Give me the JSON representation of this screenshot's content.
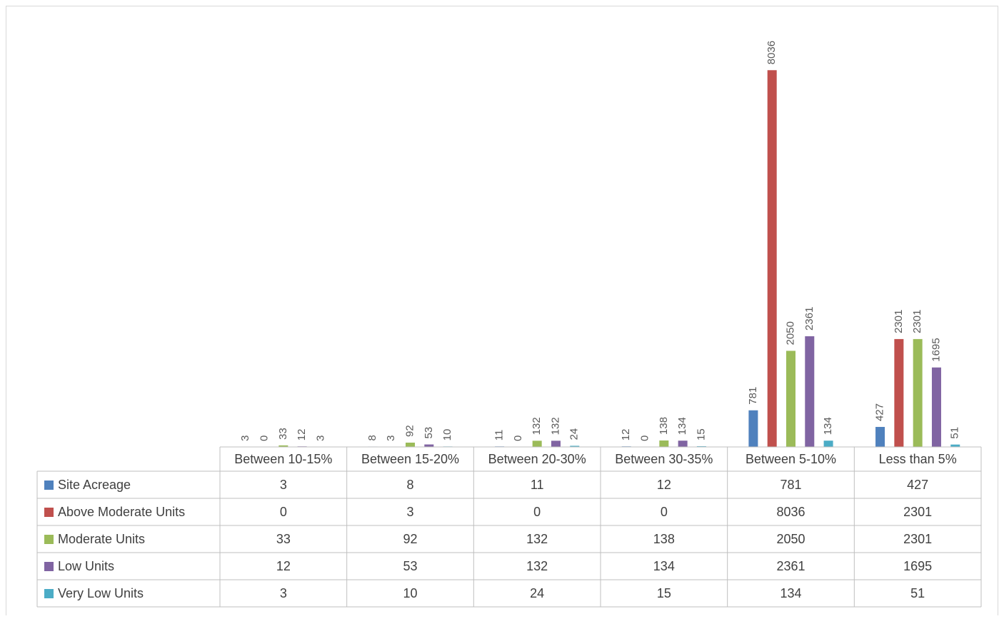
{
  "chart_data": {
    "type": "bar",
    "categories": [
      "Between 10-15%",
      "Between 15-20%",
      "Between 20-30%",
      "Between 30-35%",
      "Between 5-10%",
      "Less than 5%"
    ],
    "series": [
      {
        "name": "Site Acreage",
        "color": "#4f81bd",
        "values": [
          3,
          8,
          11,
          12,
          781,
          427
        ]
      },
      {
        "name": "Above Moderate Units",
        "color": "#c0504d",
        "values": [
          0,
          3,
          0,
          0,
          8036,
          2301
        ]
      },
      {
        "name": "Moderate Units",
        "color": "#9bbb59",
        "values": [
          33,
          92,
          132,
          138,
          2050,
          2301
        ]
      },
      {
        "name": "Low Units",
        "color": "#8064a2",
        "values": [
          12,
          53,
          132,
          134,
          2361,
          1695
        ]
      },
      {
        "name": "Very Low Units",
        "color": "#4bacc6",
        "values": [
          3,
          10,
          24,
          15,
          134,
          51
        ]
      }
    ],
    "ylim": [
      0,
      9000
    ]
  }
}
